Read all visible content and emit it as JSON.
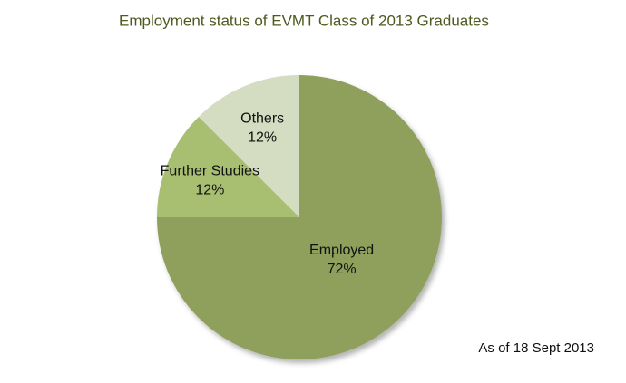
{
  "chart_data": {
    "type": "pie",
    "title": "Employment status of EVMT Class of 2013 Graduates",
    "categories": [
      "Employed",
      "Further Studies",
      "Others"
    ],
    "values": [
      72,
      12,
      12
    ],
    "value_labels": [
      "72%",
      "12%",
      "12%"
    ],
    "colors": [
      "#8f9f5c",
      "#a8bf72",
      "#d4dcc2"
    ],
    "annotation": "As of 18 Sept  2013"
  }
}
